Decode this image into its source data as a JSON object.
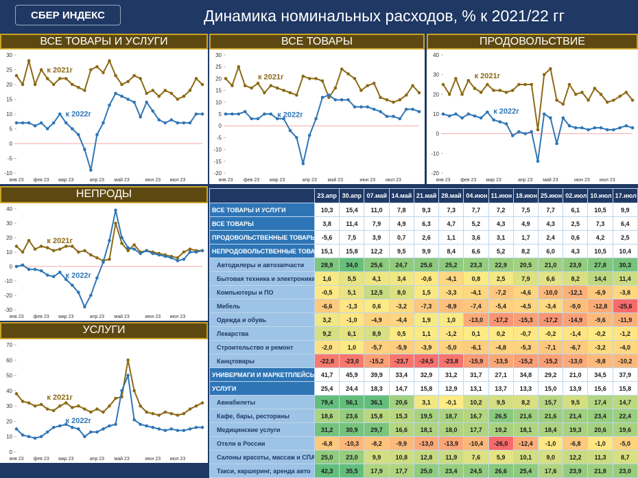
{
  "header": {
    "logo": "СБЕР ИНДЕКС",
    "title": "Динамика номинальных расходов, % к 2021/22 гг"
  },
  "chart_data": [
    {
      "type": "line",
      "title": "ВСЕ ТОВАРЫ И УСЛУГИ",
      "categories": [
        "янв 23",
        null,
        null,
        null,
        "фев 23",
        null,
        null,
        null,
        "мар 23",
        null,
        null,
        null,
        null,
        "апр 23",
        null,
        null,
        null,
        "май 23",
        null,
        null,
        null,
        null,
        "июн 23",
        null,
        null,
        null,
        "июл 23",
        null,
        null,
        null,
        null
      ],
      "ylim": [
        -10,
        30
      ],
      "yticks": [
        -10,
        -5,
        0,
        5,
        10,
        15,
        20,
        25,
        30
      ],
      "series": [
        {
          "name": "к 2021г",
          "color": "#8b6914",
          "values": [
            23,
            20,
            28,
            20,
            25,
            22,
            20,
            22,
            22,
            20,
            19,
            18,
            25,
            26,
            24,
            28,
            23,
            20,
            21,
            23,
            22,
            17,
            18,
            16,
            18,
            17,
            15,
            16,
            18,
            22,
            20
          ]
        },
        {
          "name": "к 2022г",
          "color": "#2e75b6",
          "values": [
            7,
            7,
            7,
            6,
            7,
            5,
            7,
            10,
            7,
            5,
            3,
            -2,
            -9,
            3,
            7,
            13,
            17,
            16,
            15,
            14,
            9,
            14,
            11,
            8,
            7,
            8,
            7,
            7,
            7,
            10,
            10
          ]
        }
      ]
    },
    {
      "type": "line",
      "title": "ВСЕ ТОВАРЫ",
      "categories": [
        "янв 23",
        null,
        null,
        null,
        "фев 23",
        null,
        null,
        null,
        "мар 23",
        null,
        null,
        null,
        null,
        "апр 23",
        null,
        null,
        null,
        "май 23",
        null,
        null,
        null,
        null,
        "июн 23",
        null,
        null,
        null,
        "июл 23",
        null,
        null,
        null,
        null
      ],
      "ylim": [
        -20,
        30
      ],
      "yticks": [
        -20,
        -15,
        -10,
        -5,
        0,
        5,
        10,
        15,
        20,
        25,
        30
      ],
      "series": [
        {
          "name": "к 2021г",
          "color": "#8b6914",
          "values": [
            20,
            17,
            25,
            17,
            16,
            18,
            14,
            17,
            16,
            15,
            14,
            13,
            21,
            20,
            20,
            19,
            12,
            16,
            24,
            22,
            20,
            15,
            17,
            18,
            12,
            11,
            10,
            11,
            13,
            17,
            14
          ]
        },
        {
          "name": "к 2022г",
          "color": "#2e75b6",
          "values": [
            5,
            5,
            5,
            6,
            3,
            3,
            5,
            5,
            3,
            3,
            -2,
            -5,
            -16,
            -4,
            3,
            12,
            13,
            11,
            11,
            11,
            8,
            8,
            8,
            7,
            6,
            4,
            4,
            3,
            7,
            7,
            6
          ]
        }
      ]
    },
    {
      "type": "line",
      "title": "ПРОДОВОЛЬСТВИЕ",
      "categories": [
        "янв 23",
        null,
        null,
        null,
        "фев 23",
        null,
        null,
        null,
        "мар 23",
        null,
        null,
        null,
        null,
        "апр 23",
        null,
        null,
        null,
        "май 23",
        null,
        null,
        null,
        null,
        "июн 23",
        null,
        null,
        null,
        "июл 23",
        null,
        null,
        null,
        null
      ],
      "ylim": [
        -20,
        40
      ],
      "yticks": [
        -20,
        -10,
        0,
        10,
        20,
        30,
        40
      ],
      "series": [
        {
          "name": "к 2021г",
          "color": "#8b6914",
          "values": [
            25,
            20,
            28,
            20,
            27,
            23,
            21,
            25,
            22,
            22,
            21,
            22,
            25,
            25,
            25,
            2,
            30,
            33,
            17,
            15,
            25,
            20,
            21,
            17,
            23,
            20,
            16,
            17,
            19,
            21,
            17
          ]
        },
        {
          "name": "к 2022г",
          "color": "#2e75b6",
          "values": [
            10,
            9,
            10,
            8,
            10,
            9,
            8,
            11,
            7,
            6,
            5,
            -1,
            1,
            0,
            1,
            -14,
            10,
            8,
            -5,
            8,
            4,
            3,
            3,
            2,
            3,
            3,
            2,
            2,
            3,
            4,
            3
          ]
        }
      ]
    },
    {
      "type": "line",
      "title": "НЕПРОДЫ",
      "categories": [
        "янв 23",
        null,
        null,
        null,
        "фев 23",
        null,
        null,
        null,
        "мар 23",
        null,
        null,
        null,
        null,
        "апр 23",
        null,
        null,
        null,
        "май 23",
        null,
        null,
        null,
        null,
        "июн 23",
        null,
        null,
        null,
        "июл 23",
        null,
        null,
        null,
        null
      ],
      "ylim": [
        -30,
        40
      ],
      "yticks": [
        -30,
        -20,
        -10,
        0,
        10,
        20,
        30,
        40
      ],
      "series": [
        {
          "name": "к 2021г",
          "color": "#8b6914",
          "values": [
            14,
            10,
            18,
            12,
            14,
            13,
            11,
            12,
            14,
            14,
            10,
            11,
            8,
            6,
            4,
            5,
            30,
            16,
            11,
            15,
            10,
            11,
            10,
            9,
            8,
            7,
            6,
            10,
            12,
            11,
            11
          ]
        },
        {
          "name": "к 2022г",
          "color": "#2e75b6",
          "values": [
            0,
            1,
            -2,
            -2,
            -3,
            -6,
            -7,
            -4,
            -9,
            -13,
            -18,
            -28,
            -20,
            -8,
            3,
            18,
            39,
            20,
            13,
            12,
            9,
            11,
            9,
            8,
            7,
            6,
            4,
            5,
            10,
            10,
            11
          ]
        }
      ]
    },
    {
      "type": "line",
      "title": "УСЛУГИ",
      "categories": [
        "янв 23",
        null,
        null,
        null,
        "фев 23",
        null,
        null,
        null,
        "мар 23",
        null,
        null,
        null,
        null,
        "апр 23",
        null,
        null,
        null,
        "май 23",
        null,
        null,
        null,
        null,
        "июн 23",
        null,
        null,
        null,
        "июл 23",
        null,
        null,
        null,
        null
      ],
      "ylim": [
        0,
        70
      ],
      "yticks": [
        0,
        10,
        20,
        30,
        40,
        50,
        60,
        70
      ],
      "series": [
        {
          "name": "к 2021г",
          "color": "#8b6914",
          "values": [
            38,
            33,
            32,
            30,
            31,
            28,
            27,
            30,
            32,
            29,
            30,
            28,
            26,
            28,
            26,
            30,
            35,
            36,
            60,
            40,
            30,
            26,
            25,
            24,
            26,
            25,
            24,
            25,
            28,
            30,
            32
          ]
        },
        {
          "name": "к 2022г",
          "color": "#2e75b6",
          "values": [
            15,
            11,
            10,
            9,
            10,
            13,
            16,
            17,
            18,
            16,
            15,
            10,
            13,
            13,
            15,
            17,
            18,
            40,
            50,
            21,
            18,
            17,
            16,
            15,
            14,
            15,
            14,
            14,
            15,
            16,
            16
          ]
        }
      ]
    }
  ],
  "table": {
    "columns": [
      "23.апр",
      "30.апр",
      "07.май",
      "14.май",
      "21.май",
      "28.май",
      "04.июн",
      "11.июн",
      "18.июн",
      "25.июн",
      "02.июл",
      "10.июл",
      "17.июл"
    ],
    "rows": [
      {
        "label": "ВСЕ ТОВАРЫ И УСЛУГИ",
        "values": [
          "10,3",
          "15,4",
          "11,0",
          "7,8",
          "9,3",
          "7,3",
          "7,7",
          "7,2",
          "7,5",
          "7,7",
          "6,1",
          "10,5",
          "9,9"
        ]
      },
      {
        "label": "ВСЕ ТОВАРЫ",
        "values": [
          "3,8",
          "11,4",
          "7,9",
          "4,9",
          "6,3",
          "4,7",
          "5,2",
          "4,3",
          "4,9",
          "4,3",
          "2,5",
          "7,3",
          "6,4"
        ]
      },
      {
        "label": "ПРОДОВОЛЬСТВЕННЫЕ ТОВАРЫ",
        "values": [
          "-5,6",
          "7,5",
          "3,9",
          "0,7",
          "2,6",
          "1,1",
          "3,6",
          "3,1",
          "1,7",
          "2,4",
          "0,6",
          "4,2",
          "2,5"
        ]
      },
      {
        "label": "НЕПРОДОВОЛЬСТВЕННЫЕ ТОВАРЫ",
        "values": [
          "15,1",
          "15,8",
          "12,2",
          "9,5",
          "9,9",
          "8,4",
          "6,6",
          "5,2",
          "8,2",
          "6,0",
          "4,3",
          "10,5",
          "10,4"
        ]
      },
      {
        "label": "Автодилеры и автозапчасти",
        "values": [
          "28,9",
          "34,0",
          "25,6",
          "24,7",
          "25,6",
          "25,2",
          "23,3",
          "22,9",
          "20,5",
          "21,0",
          "23,9",
          "27,8",
          "30,3"
        ]
      },
      {
        "label": "Бытовая техника и электроника",
        "values": [
          "1,6",
          "5,5",
          "4,1",
          "3,4",
          "-0,6",
          "-4,1",
          "0,8",
          "2,5",
          "7,9",
          "6,6",
          "8,2",
          "14,4",
          "11,4"
        ]
      },
      {
        "label": "Компьютеры и ПО",
        "values": [
          "-0,5",
          "5,1",
          "12,5",
          "8,0",
          "1,5",
          "-3,3",
          "-4,1",
          "-7,2",
          "-4,6",
          "-10,0",
          "-12,1",
          "-6,9",
          "-3,8"
        ]
      },
      {
        "label": "Мебель",
        "values": [
          "-6,6",
          "-1,3",
          "0,6",
          "-3,2",
          "-7,3",
          "-8,9",
          "-7,4",
          "-5,4",
          "-4,5",
          "-3,4",
          "-9,0",
          "-12,8",
          "-25,6"
        ]
      },
      {
        "label": "Одежда и обувь",
        "values": [
          "3,2",
          "-1,0",
          "-4,9",
          "-4,4",
          "1,9",
          "1,0",
          "-13,0",
          "-17,2",
          "-15,3",
          "-17,2",
          "-14,9",
          "-9,6",
          "-11,9"
        ]
      },
      {
        "label": "Лекарства",
        "values": [
          "9,2",
          "6,1",
          "8,9",
          "0,5",
          "1,1",
          "-1,2",
          "0,1",
          "0,2",
          "-0,7",
          "-0,2",
          "-1,4",
          "-0,2",
          "-1,2"
        ]
      },
      {
        "label": "Строительство и ремонт",
        "values": [
          "-2,0",
          "1,0",
          "-5,7",
          "-5,9",
          "-3,9",
          "-5,0",
          "-6,1",
          "-4,8",
          "-5,3",
          "-7,1",
          "-6,7",
          "-3,2",
          "-4,0"
        ]
      },
      {
        "label": "Канцтовары",
        "values": [
          "-22,8",
          "-23,0",
          "-15,2",
          "-23,7",
          "-24,5",
          "-23,8",
          "-15,9",
          "-13,5",
          "-15,2",
          "-15,2",
          "-13,0",
          "-9,8",
          "-10,2"
        ]
      },
      {
        "label": "УНИВЕРМАГИ И МАРКЕТПЛЕЙСЫ",
        "values": [
          "41,7",
          "45,9",
          "39,9",
          "33,4",
          "32,9",
          "31,2",
          "31,7",
          "27,1",
          "34,8",
          "29,2",
          "21,0",
          "34,5",
          "37,9"
        ]
      },
      {
        "label": "УСЛУГИ",
        "values": [
          "25,4",
          "24,4",
          "18,3",
          "14,7",
          "15,8",
          "12,9",
          "13,1",
          "13,7",
          "13,3",
          "15,0",
          "13,9",
          "15,6",
          "15,8"
        ]
      },
      {
        "label": "Авиабилеты",
        "values": [
          "79,4",
          "56,1",
          "36,1",
          "20,6",
          "3,1",
          "-0,1",
          "10,2",
          "9,5",
          "8,2",
          "15,7",
          "9,5",
          "17,4",
          "14,7"
        ]
      },
      {
        "label": "Кафе, бары, рестораны",
        "values": [
          "18,6",
          "23,6",
          "15,8",
          "15,3",
          "19,5",
          "18,7",
          "16,7",
          "26,5",
          "21,6",
          "21,6",
          "21,4",
          "23,4",
          "22,4"
        ]
      },
      {
        "label": "Медицинские услуги",
        "values": [
          "31,2",
          "30,9",
          "29,7",
          "16,6",
          "18,1",
          "18,0",
          "17,7",
          "19,2",
          "18,1",
          "18,4",
          "19,3",
          "20,6",
          "19,6"
        ]
      },
      {
        "label": "Отели в России",
        "values": [
          "-6,8",
          "-10,3",
          "-8,2",
          "-9,9",
          "-13,0",
          "-13,9",
          "-10,4",
          "-26,0",
          "-12,4",
          "-1,0",
          "-6,8",
          "-1,0",
          "-5,0"
        ]
      },
      {
        "label": "Салоны красоты, массаж и СПА",
        "values": [
          "25,0",
          "23,0",
          "9,9",
          "10,8",
          "12,8",
          "11,9",
          "7,6",
          "5,9",
          "10,1",
          "9,0",
          "12,2",
          "11,3",
          "8,7"
        ]
      },
      {
        "label": "Такси, каршеринг, аренда авто",
        "values": [
          "42,3",
          "35,5",
          "17,9",
          "17,7",
          "25,0",
          "23,4",
          "24,5",
          "26,6",
          "25,4",
          "17,6",
          "23,9",
          "21,8",
          "23,0"
        ]
      }
    ]
  }
}
